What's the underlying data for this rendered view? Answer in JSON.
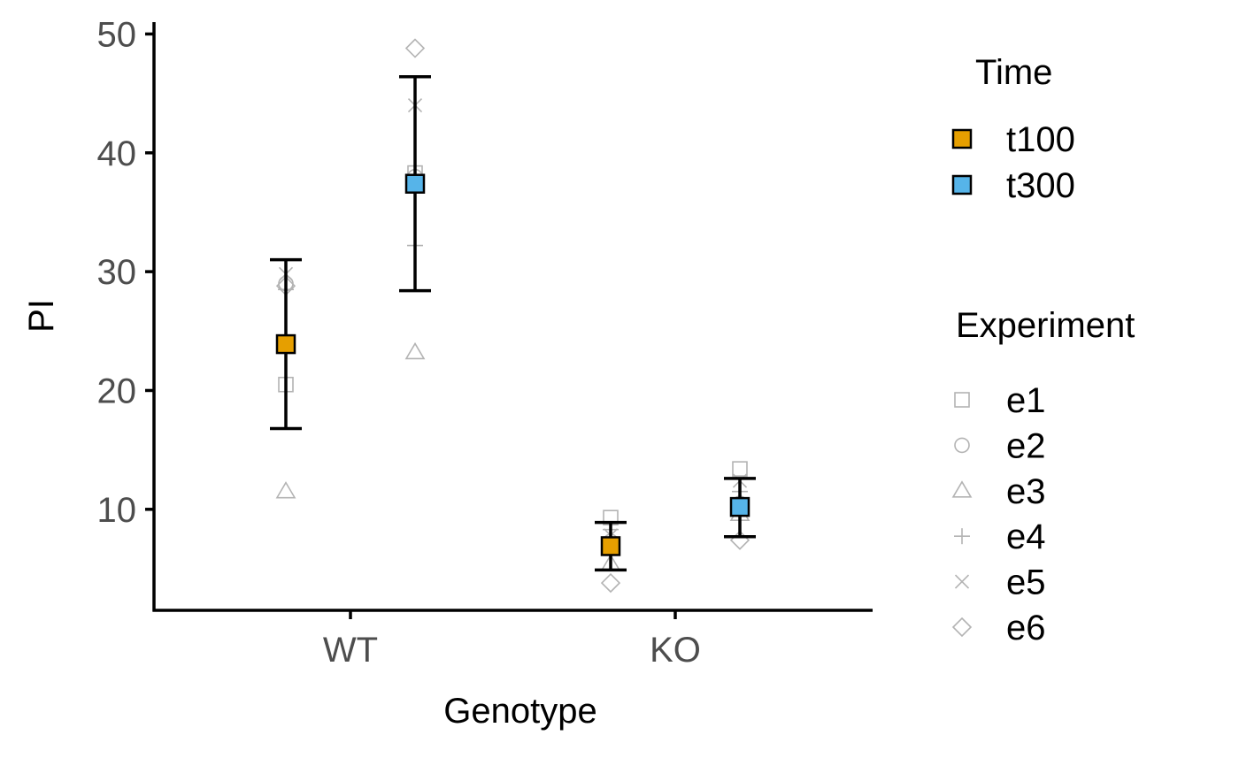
{
  "chart_data": {
    "type": "scatter",
    "xlabel": "Genotype",
    "ylabel": "PI",
    "categories": [
      "WT",
      "KO"
    ],
    "ylim": [
      1.5,
      51
    ],
    "yticks": [
      10,
      20,
      30,
      40,
      50
    ],
    "grid": false,
    "legend_placement": "right",
    "series": [
      {
        "name": "t100",
        "color": "#E69F00",
        "marker": "square",
        "points": [
          {
            "category": "WT",
            "mean": 23.9,
            "ymin": 16.8,
            "ymax": 31.0
          },
          {
            "category": "KO",
            "mean": 6.9,
            "ymin": 4.9,
            "ymax": 8.9
          }
        ]
      },
      {
        "name": "t300",
        "color": "#56B4E9",
        "marker": "square",
        "points": [
          {
            "category": "WT",
            "mean": 37.4,
            "ymin": 28.4,
            "ymax": 46.4
          },
          {
            "category": "KO",
            "mean": 10.2,
            "ymin": 7.7,
            "ymax": 12.6
          }
        ]
      }
    ],
    "experiment_points": [
      {
        "category": "WT",
        "time": "t100",
        "experiment": "e1",
        "value": 20.5
      },
      {
        "category": "WT",
        "time": "t100",
        "experiment": "e2",
        "value": 29.0
      },
      {
        "category": "WT",
        "time": "t100",
        "experiment": "e3",
        "value": 11.5
      },
      {
        "category": "WT",
        "time": "t100",
        "experiment": "e4",
        "value": 28.5
      },
      {
        "category": "WT",
        "time": "t100",
        "experiment": "e5",
        "value": 29.8
      },
      {
        "category": "WT",
        "time": "t100",
        "experiment": "e6",
        "value": 28.8
      },
      {
        "category": "WT",
        "time": "t300",
        "experiment": "e1",
        "value": 38.3
      },
      {
        "category": "WT",
        "time": "t300",
        "experiment": "e2",
        "value": 38.0
      },
      {
        "category": "WT",
        "time": "t300",
        "experiment": "e3",
        "value": 23.2
      },
      {
        "category": "WT",
        "time": "t300",
        "experiment": "e4",
        "value": 32.2
      },
      {
        "category": "WT",
        "time": "t300",
        "experiment": "e5",
        "value": 44.0
      },
      {
        "category": "WT",
        "time": "t300",
        "experiment": "e6",
        "value": 48.8
      },
      {
        "category": "KO",
        "time": "t100",
        "experiment": "e1",
        "value": 9.3
      },
      {
        "category": "KO",
        "time": "t100",
        "experiment": "e2",
        "value": 7.3
      },
      {
        "category": "KO",
        "time": "t100",
        "experiment": "e3",
        "value": 5.4
      },
      {
        "category": "KO",
        "time": "t100",
        "experiment": "e4",
        "value": 8.3
      },
      {
        "category": "KO",
        "time": "t100",
        "experiment": "e5",
        "value": 7.8
      },
      {
        "category": "KO",
        "time": "t100",
        "experiment": "e6",
        "value": 3.8
      },
      {
        "category": "KO",
        "time": "t300",
        "experiment": "e1",
        "value": 13.4
      },
      {
        "category": "KO",
        "time": "t300",
        "experiment": "e2",
        "value": 10.5
      },
      {
        "category": "KO",
        "time": "t300",
        "experiment": "e3",
        "value": 9.6
      },
      {
        "category": "KO",
        "time": "t300",
        "experiment": "e4",
        "value": 11.5
      },
      {
        "category": "KO",
        "time": "t300",
        "experiment": "e5",
        "value": 12.4
      },
      {
        "category": "KO",
        "time": "t300",
        "experiment": "e6",
        "value": 7.4
      }
    ],
    "legend_time": {
      "title": "Time",
      "entries": [
        {
          "label": "t100",
          "color": "#E69F00"
        },
        {
          "label": "t300",
          "color": "#56B4E9"
        }
      ]
    },
    "legend_experiment": {
      "title": "Experiment",
      "entries": [
        {
          "label": "e1",
          "shape": "square-open"
        },
        {
          "label": "e2",
          "shape": "circle-open"
        },
        {
          "label": "e3",
          "shape": "triangle-open"
        },
        {
          "label": "e4",
          "shape": "plus"
        },
        {
          "label": "e5",
          "shape": "cross"
        },
        {
          "label": "e6",
          "shape": "diamond-open"
        }
      ]
    },
    "colors": {
      "axis": "#000000",
      "tick_label": "#4d4d4d",
      "experiment_marker": "#b3b3b3",
      "errorbar": "#000000"
    }
  }
}
